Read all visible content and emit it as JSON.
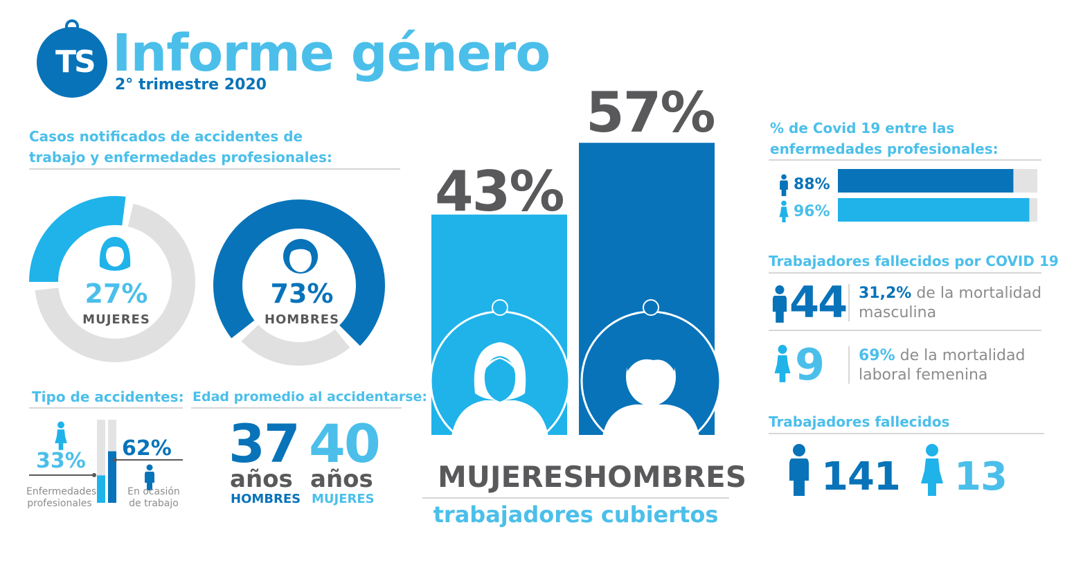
{
  "colors": {
    "light_blue": "#1fb3ea",
    "dark_blue": "#0873b9",
    "gray_ring": "#e0e0e0",
    "text_gray": "#59595b"
  },
  "header": {
    "logo": "TS",
    "title": "Informe género",
    "subtitle": "2° trimestre 2020"
  },
  "cases": {
    "heading": "Casos notificados de accidentes de trabajo y enfermedades profesionales:",
    "women": {
      "pct": 27,
      "pct_label": "27%",
      "label": "MUJERES",
      "icon": "woman-icon"
    },
    "men": {
      "pct": 73,
      "pct_label": "73%",
      "label": "HOMBRES",
      "icon": "man-icon"
    }
  },
  "accident_type": {
    "heading": "Tipo de accidentes:",
    "occupational_disease": {
      "pct_label": "33%",
      "label_line1": "Enfermedades",
      "label_line2": "profesionales"
    },
    "at_work": {
      "pct_label": "62%",
      "label_line1": "En ocasión",
      "label_line2": "de trabajo"
    }
  },
  "avg_age": {
    "heading": "Edad promedio al accidentarse:",
    "men": {
      "value": "37",
      "unit": "años",
      "label": "HOMBRES"
    },
    "women": {
      "value": "40",
      "unit": "años",
      "label": "MUJERES"
    }
  },
  "covered": {
    "women_pct_label": "43%",
    "men_pct_label": "57%",
    "women_label": "MUJERES",
    "men_label": "HOMBRES",
    "caption": "trabajadores cubiertos"
  },
  "covid_share": {
    "heading": "% de Covid 19 entre las enfermedades profesionales:",
    "men": {
      "pct": 88,
      "label": "88%"
    },
    "women": {
      "pct": 96,
      "label": "96%"
    }
  },
  "covid_deaths": {
    "heading": "Trabajadores fallecidos por COVID 19",
    "men": {
      "count": "44",
      "pct": "31,2%",
      "text_line1": "de la mortalidad",
      "text_line2": "masculina"
    },
    "women": {
      "count": "9",
      "pct": "69%",
      "text_line1": "de la mortalidad",
      "text_line2": "laboral femenina"
    }
  },
  "deaths": {
    "heading": "Trabajadores fallecidos",
    "men": "141",
    "women": "13"
  },
  "chart_data": [
    {
      "type": "pie",
      "categories": [
        "MUJERES",
        "HOMBRES"
      ],
      "values": [
        27,
        73
      ],
      "title": "Casos notificados de accidentes de trabajo y enfermedades profesionales:"
    },
    {
      "type": "bar",
      "categories": [
        "MUJERES",
        "HOMBRES"
      ],
      "values": [
        43,
        57
      ],
      "ylim": [
        0,
        100
      ],
      "title": "trabajadores cubiertos"
    },
    {
      "type": "bar",
      "categories": [
        "HOMBRES",
        "MUJERES"
      ],
      "values": [
        88,
        96
      ],
      "ylim": [
        0,
        100
      ],
      "title": "% de Covid 19 entre las enfermedades profesionales:"
    },
    {
      "type": "bar",
      "categories": [
        "Enfermedades profesionales",
        "En ocasión de trabajo"
      ],
      "values": [
        33,
        62
      ],
      "title": "Tipo de accidentes:"
    }
  ]
}
